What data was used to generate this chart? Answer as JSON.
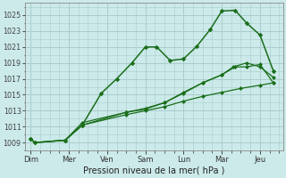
{
  "title": "",
  "xlabel": "Pression niveau de la mer( hPa )",
  "ylabel": "",
  "bg_color": "#cceaea",
  "grid_color": "#aacccc",
  "line_color": "#1a6e1a",
  "ylim": [
    1008.0,
    1026.5
  ],
  "yticks": [
    1009,
    1011,
    1013,
    1015,
    1017,
    1019,
    1021,
    1023,
    1025
  ],
  "x_labels": [
    "Dim",
    "Mer",
    "Ven",
    "Sam",
    "Lun",
    "Mar",
    "Jeu"
  ],
  "x_positions": [
    0,
    1,
    2,
    3,
    4,
    5,
    6
  ],
  "xlim": [
    -0.15,
    6.6
  ],
  "series1": {
    "x": [
      0.0,
      0.1,
      0.9,
      1.35,
      1.85,
      2.25,
      2.65,
      3.0,
      3.3,
      3.65,
      4.0,
      4.35,
      4.7,
      5.0,
      5.35,
      5.65,
      6.0,
      6.35
    ],
    "y": [
      1009.5,
      1009.0,
      1009.3,
      1011.2,
      1015.2,
      1017.0,
      1019.0,
      1021.0,
      1021.0,
      1019.3,
      1019.5,
      1021.1,
      1023.2,
      1025.5,
      1025.6,
      1024.0,
      1022.5,
      1018.0
    ]
  },
  "series2": {
    "x": [
      0.0,
      0.1,
      0.9,
      1.35,
      2.5,
      3.0,
      3.5,
      4.0,
      4.5,
      5.0,
      5.5,
      6.0,
      6.35
    ],
    "y": [
      1009.5,
      1009.0,
      1009.3,
      1011.2,
      1012.5,
      1013.0,
      1013.5,
      1014.2,
      1014.8,
      1015.3,
      1015.8,
      1016.2,
      1016.5
    ]
  },
  "series3": {
    "x": [
      0.0,
      0.1,
      0.9,
      1.35,
      2.5,
      3.0,
      3.5,
      4.0,
      4.5,
      5.0,
      5.3,
      5.65,
      6.0,
      6.35
    ],
    "y": [
      1009.5,
      1009.0,
      1009.3,
      1011.5,
      1012.8,
      1013.3,
      1014.0,
      1015.2,
      1016.5,
      1017.5,
      1018.5,
      1019.0,
      1018.5,
      1017.2
    ]
  },
  "series4": {
    "x": [
      0.9,
      1.35,
      2.5,
      3.0,
      3.5,
      4.0,
      4.5,
      5.0,
      5.35,
      5.65,
      6.0,
      6.35
    ],
    "y": [
      1009.3,
      1011.2,
      1012.8,
      1013.2,
      1014.0,
      1015.3,
      1016.5,
      1017.5,
      1018.5,
      1018.5,
      1018.8,
      1016.5
    ]
  }
}
